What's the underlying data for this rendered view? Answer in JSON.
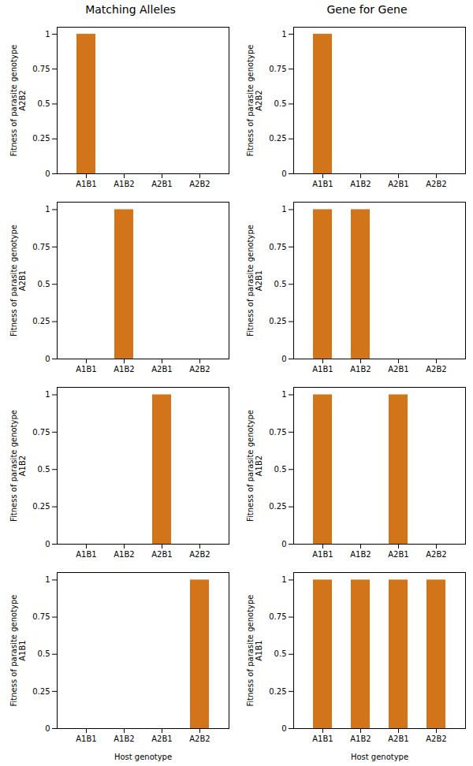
{
  "chart_data": [
    {
      "type": "bar",
      "title": "Matching Alleles",
      "ylabel": "Fitness of parasite genotype\nA2B2",
      "categories": [
        "A1B1",
        "A1B2",
        "A2B1",
        "A2B2"
      ],
      "values": [
        1,
        0,
        0,
        0
      ],
      "color": "#D2751A",
      "ylim": [
        0,
        1.05
      ],
      "yticks": [
        0,
        0.25,
        0.5,
        0.75,
        1
      ],
      "grid": false
    },
    {
      "type": "bar",
      "title": "Gene for Gene",
      "ylabel": "Fitness of parasite genotype\nA2B2",
      "categories": [
        "A1B1",
        "A1B2",
        "A2B1",
        "A2B2"
      ],
      "values": [
        1,
        0,
        0,
        0
      ],
      "color": "#D2751A",
      "ylim": [
        0,
        1.05
      ],
      "yticks": [
        0,
        0.25,
        0.5,
        0.75,
        1
      ],
      "grid": false
    },
    {
      "type": "bar",
      "ylabel": "Fitness of parasite genotype\nA2B1",
      "categories": [
        "A1B1",
        "A1B2",
        "A2B1",
        "A2B2"
      ],
      "values": [
        0,
        1,
        0,
        0
      ],
      "color": "#D2751A",
      "ylim": [
        0,
        1.05
      ],
      "yticks": [
        0,
        0.25,
        0.5,
        0.75,
        1
      ],
      "grid": false
    },
    {
      "type": "bar",
      "ylabel": "Fitness of parasite genotype\nA2B1",
      "categories": [
        "A1B1",
        "A1B2",
        "A2B1",
        "A2B2"
      ],
      "values": [
        1,
        1,
        0,
        0
      ],
      "color": "#D2751A",
      "ylim": [
        0,
        1.05
      ],
      "yticks": [
        0,
        0.25,
        0.5,
        0.75,
        1
      ],
      "grid": false
    },
    {
      "type": "bar",
      "ylabel": "Fitness of parasite genotype\nA1B2",
      "categories": [
        "A1B1",
        "A1B2",
        "A2B1",
        "A2B2"
      ],
      "values": [
        0,
        0,
        1,
        0
      ],
      "color": "#D2751A",
      "ylim": [
        0,
        1.05
      ],
      "yticks": [
        0,
        0.25,
        0.5,
        0.75,
        1
      ],
      "grid": false
    },
    {
      "type": "bar",
      "ylabel": "Fitness of parasite genotype\nA1B2",
      "categories": [
        "A1B1",
        "A1B2",
        "A2B1",
        "A2B2"
      ],
      "values": [
        1,
        0,
        1,
        0
      ],
      "color": "#D2751A",
      "ylim": [
        0,
        1.05
      ],
      "yticks": [
        0,
        0.25,
        0.5,
        0.75,
        1
      ],
      "grid": false
    },
    {
      "type": "bar",
      "ylabel": "Fitness of parasite genotype\nA1B1",
      "xlabel": "Host genotype",
      "categories": [
        "A1B1",
        "A1B2",
        "A2B1",
        "A2B2"
      ],
      "values": [
        0,
        0,
        0,
        1
      ],
      "color": "#D2751A",
      "ylim": [
        0,
        1.05
      ],
      "yticks": [
        0,
        0.25,
        0.5,
        0.75,
        1
      ],
      "grid": false
    },
    {
      "type": "bar",
      "ylabel": "Fitness of parasite genotype\nA1B1",
      "xlabel": "Host genotype",
      "categories": [
        "A1B1",
        "A1B2",
        "A2B1",
        "A2B2"
      ],
      "values": [
        1,
        1,
        1,
        1
      ],
      "color": "#D2751A",
      "ylim": [
        0,
        1.05
      ],
      "yticks": [
        0,
        0.25,
        0.5,
        0.75,
        1
      ],
      "grid": false
    }
  ]
}
